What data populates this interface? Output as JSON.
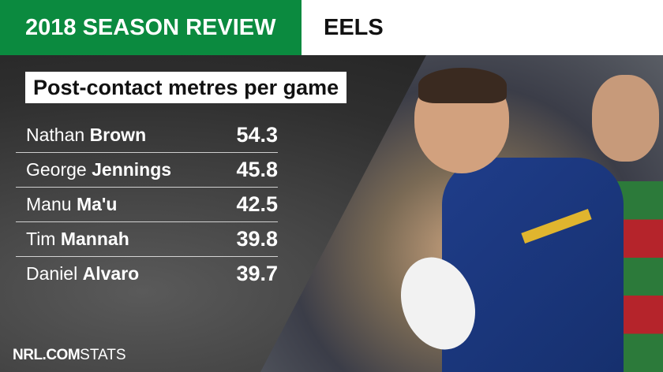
{
  "header": {
    "title": "2018 SEASON REVIEW",
    "team": "EELS",
    "accent_color": "#0b8a3f"
  },
  "stat": {
    "title": "Post-contact metres per game"
  },
  "rows": [
    {
      "first": "Nathan",
      "last": "Brown",
      "value": "54.3"
    },
    {
      "first": "George",
      "last": "Jennings",
      "value": "45.8"
    },
    {
      "first": "Manu",
      "last": "Ma'u",
      "value": "42.5"
    },
    {
      "first": "Tim",
      "last": "Mannah",
      "value": "39.8"
    },
    {
      "first": "Daniel",
      "last": "Alvaro",
      "value": "39.7"
    }
  ],
  "footer": {
    "brand": "NRL.COM",
    "suffix": "STATS"
  }
}
